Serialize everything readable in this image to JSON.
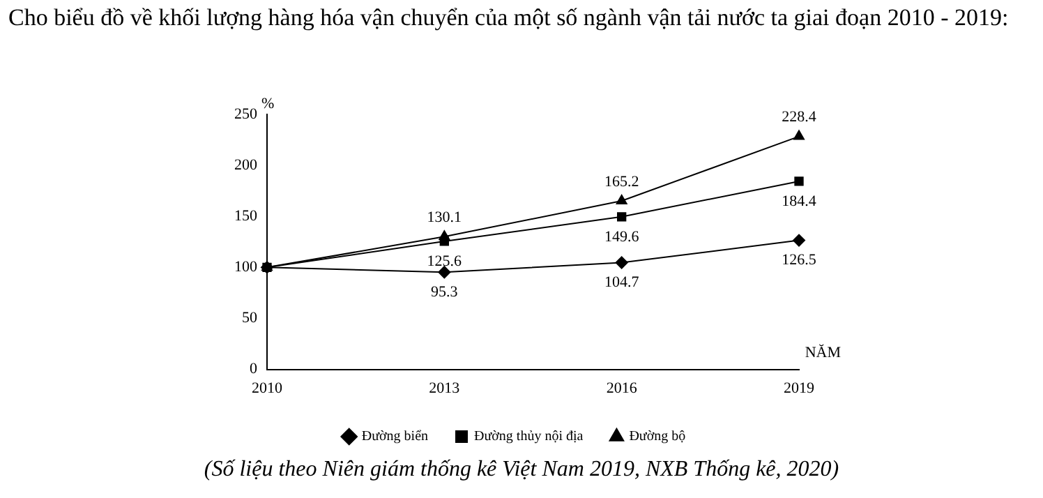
{
  "chart_data": {
    "type": "line",
    "title": "Cho biểu đồ về khối lượng hàng hóa vận chuyển của một số ngành vận tải nước ta giai đoạn 2010 - 2019:",
    "xlabel": "NĂM",
    "ylabel": "%",
    "annotations": [
      "(Số liệu theo Niên giám thống kê Việt Nam 2019, NXB Thống kê, 2020)"
    ],
    "x": [
      2010,
      2013,
      2016,
      2019
    ],
    "series": [
      {
        "name": "Đường biển",
        "color": "#000000",
        "marker": "diamond",
        "values": [
          100,
          95.3,
          104.7,
          126.5
        ],
        "value_labels": [
          null,
          "95.3",
          "104.7",
          "126.5"
        ]
      },
      {
        "name": "Đường thủy nội địa",
        "color": "#000000",
        "marker": "square",
        "values": [
          100,
          125.6,
          149.6,
          184.4
        ],
        "value_labels": [
          null,
          "125.6",
          "149.6",
          "184.4"
        ]
      },
      {
        "name": "Đường bộ",
        "color": "#000000",
        "marker": "triangle",
        "values": [
          100,
          130.1,
          165.2,
          228.4
        ],
        "value_labels": [
          null,
          "130.1",
          "165.2",
          "228.4"
        ]
      }
    ],
    "xlim": [
      2010,
      2019
    ],
    "xticks": [
      2010,
      2013,
      2016,
      2019
    ],
    "ylim": [
      0,
      250
    ],
    "yticks": [
      0,
      50,
      100,
      150,
      200,
      250
    ],
    "grid": false,
    "legend": "bottom",
    "line_style": "solid"
  }
}
